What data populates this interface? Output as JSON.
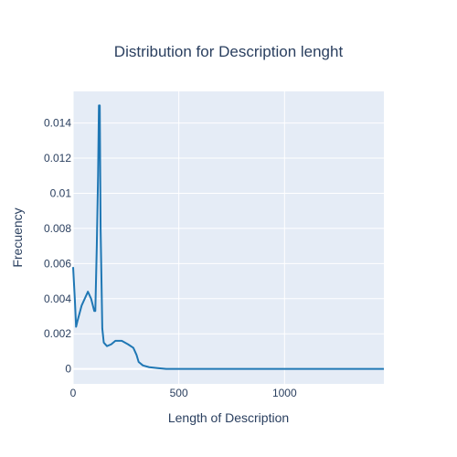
{
  "chart_data": {
    "type": "line",
    "title": "Distribution for Description lenght",
    "xlabel": "Length of Description",
    "ylabel": "Frecuency",
    "xlim": [
      0,
      1470
    ],
    "ylim": [
      -0.00085,
      0.0158
    ],
    "xticks": [
      0,
      500,
      1000
    ],
    "xtick_labels": [
      "0",
      "500",
      "1000"
    ],
    "yticks": [
      0,
      0.002,
      0.004,
      0.006,
      0.008,
      0.01,
      0.012,
      0.014
    ],
    "ytick_labels": [
      "0",
      "0.002",
      "0.004",
      "0.006",
      "0.008",
      "0.01",
      "0.012",
      "0.014"
    ],
    "grid": true,
    "series": [
      {
        "color": "#1f77b4",
        "x": [
          0,
          8,
          14,
          20,
          40,
          70,
          85,
          100,
          105,
          112,
          118,
          122,
          126,
          130,
          138,
          145,
          160,
          180,
          200,
          230,
          260,
          285,
          300,
          310,
          330,
          360,
          400,
          440,
          500,
          700,
          1000,
          1200,
          1470
        ],
        "y": [
          0.0058,
          0.004,
          0.0024,
          0.0027,
          0.0036,
          0.0044,
          0.004,
          0.0033,
          0.0033,
          0.007,
          0.011,
          0.015,
          0.015,
          0.008,
          0.0023,
          0.0015,
          0.0013,
          0.0014,
          0.0016,
          0.0016,
          0.0014,
          0.0012,
          0.0008,
          0.0004,
          0.0002,
          0.0001,
          5e-05,
          0.0,
          0.0,
          0.0,
          0.0,
          0.0,
          0.0
        ]
      }
    ]
  }
}
